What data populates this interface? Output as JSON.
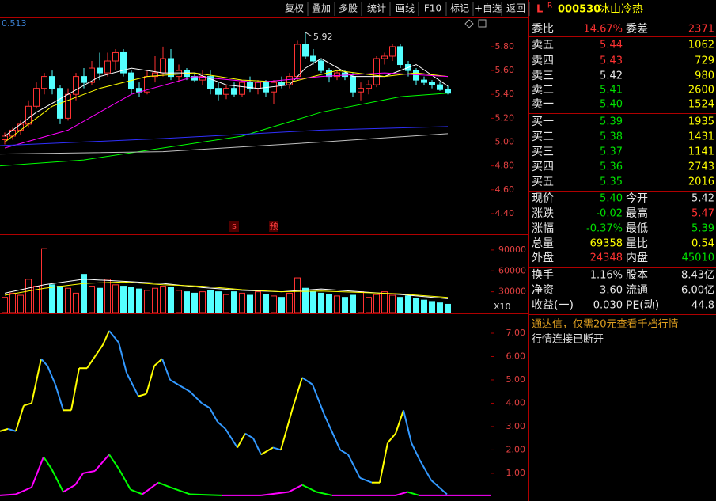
{
  "toolbar": {
    "buttons": [
      "复权",
      "叠加",
      "多股",
      "统计",
      "画线",
      "F10",
      "标记",
      "+自选",
      "返回"
    ]
  },
  "header": {
    "market": "L",
    "flag": "R",
    "code": "000530",
    "name": "冰山冷热"
  },
  "chart_data": [
    {
      "type": "candlestick",
      "corner_label": "0.513",
      "up_color": "#ff3232",
      "down_color": "#54ffff",
      "xlim": [
        -0.6,
        61.4
      ],
      "ylim": [
        4.227,
        6.045
      ],
      "yticks": [
        {
          "value": 4.4,
          "label": "4.40"
        },
        {
          "value": 4.6,
          "label": "4.60"
        },
        {
          "value": 4.8,
          "label": "4.80"
        },
        {
          "value": 5.0,
          "label": "5.00"
        },
        {
          "value": 5.2,
          "label": "5.20"
        },
        {
          "value": 5.4,
          "label": "5.40"
        },
        {
          "value": 5.6,
          "label": "5.60"
        },
        {
          "value": 5.8,
          "label": "5.80"
        }
      ],
      "annotation": {
        "label": "5.92",
        "value": 5.92,
        "index": 38
      },
      "markers": [
        {
          "label": "s",
          "index": 29
        },
        {
          "label": "预",
          "index": 34
        }
      ],
      "candles": [
        [
          5.02,
          5.08,
          4.98,
          5.05
        ],
        [
          5.05,
          5.12,
          5.02,
          5.1
        ],
        [
          5.1,
          5.18,
          5.06,
          5.15
        ],
        [
          5.15,
          5.35,
          5.12,
          5.3
        ],
        [
          5.3,
          5.5,
          5.28,
          5.45
        ],
        [
          5.45,
          5.58,
          5.4,
          5.55
        ],
        [
          5.55,
          5.6,
          5.4,
          5.45
        ],
        [
          5.45,
          5.48,
          5.15,
          5.2
        ],
        [
          5.2,
          5.45,
          5.18,
          5.4
        ],
        [
          5.4,
          5.58,
          5.35,
          5.55
        ],
        [
          5.55,
          5.62,
          5.45,
          5.5
        ],
        [
          5.5,
          5.68,
          5.48,
          5.62
        ],
        [
          5.62,
          5.75,
          5.52,
          5.58
        ],
        [
          5.58,
          5.75,
          5.55,
          5.68
        ],
        [
          5.68,
          5.78,
          5.6,
          5.75
        ],
        [
          5.75,
          5.78,
          5.55,
          5.58
        ],
        [
          5.58,
          5.6,
          5.4,
          5.45
        ],
        [
          5.45,
          5.5,
          5.38,
          5.42
        ],
        [
          5.42,
          5.6,
          5.4,
          5.55
        ],
        [
          5.55,
          5.72,
          5.5,
          5.58
        ],
        [
          5.58,
          5.8,
          5.55,
          5.7
        ],
        [
          5.7,
          5.78,
          5.52,
          5.55
        ],
        [
          5.55,
          5.65,
          5.5,
          5.6
        ],
        [
          5.6,
          5.62,
          5.52,
          5.55
        ],
        [
          5.55,
          5.58,
          5.5,
          5.52
        ],
        [
          5.52,
          5.6,
          5.48,
          5.55
        ],
        [
          5.55,
          5.6,
          5.4,
          5.45
        ],
        [
          5.45,
          5.5,
          5.35,
          5.4
        ],
        [
          5.4,
          5.48,
          5.36,
          5.45
        ],
        [
          5.45,
          5.5,
          5.38,
          5.4
        ],
        [
          5.4,
          5.52,
          5.38,
          5.5
        ],
        [
          5.5,
          5.55,
          5.42,
          5.45
        ],
        [
          5.45,
          5.52,
          5.4,
          5.5
        ],
        [
          5.5,
          5.52,
          5.38,
          5.42
        ],
        [
          5.42,
          5.52,
          5.32,
          5.5
        ],
        [
          5.5,
          5.55,
          5.45,
          5.48
        ],
        [
          5.48,
          5.58,
          5.45,
          5.55
        ],
        [
          5.55,
          5.85,
          5.52,
          5.82
        ],
        [
          5.82,
          5.92,
          5.7,
          5.72
        ],
        [
          5.72,
          5.78,
          5.65,
          5.68
        ],
        [
          5.68,
          5.7,
          5.58,
          5.6
        ],
        [
          5.6,
          5.62,
          5.5,
          5.55
        ],
        [
          5.55,
          5.6,
          5.52,
          5.58
        ],
        [
          5.58,
          5.6,
          5.52,
          5.55
        ],
        [
          5.55,
          5.58,
          5.38,
          5.42
        ],
        [
          5.42,
          5.5,
          5.35,
          5.45
        ],
        [
          5.45,
          5.52,
          5.4,
          5.48
        ],
        [
          5.48,
          5.72,
          5.46,
          5.7
        ],
        [
          5.7,
          5.75,
          5.65,
          5.72
        ],
        [
          5.72,
          5.82,
          5.68,
          5.8
        ],
        [
          5.8,
          5.82,
          5.62,
          5.65
        ],
        [
          5.65,
          5.68,
          5.55,
          5.6
        ],
        [
          5.6,
          5.62,
          5.48,
          5.52
        ],
        [
          5.52,
          5.55,
          5.48,
          5.5
        ],
        [
          5.5,
          5.52,
          5.45,
          5.48
        ],
        [
          5.48,
          5.5,
          5.43,
          5.44
        ],
        [
          5.44,
          5.47,
          5.4,
          5.41
        ]
      ],
      "series": [
        {
          "color": "#ffffff",
          "x": [
            0,
            4,
            8,
            12,
            16,
            20,
            24,
            28,
            32,
            36,
            38,
            40,
            44,
            48,
            52,
            56
          ],
          "values": [
            5.05,
            5.25,
            5.4,
            5.55,
            5.62,
            5.58,
            5.58,
            5.48,
            5.45,
            5.48,
            5.62,
            5.7,
            5.55,
            5.55,
            5.65,
            5.47
          ]
        },
        {
          "color": "#ffff00",
          "x": [
            0,
            6,
            12,
            18,
            24,
            30,
            36,
            42,
            48,
            52,
            56
          ],
          "values": [
            5.0,
            5.3,
            5.45,
            5.55,
            5.58,
            5.52,
            5.5,
            5.6,
            5.55,
            5.58,
            5.55
          ]
        },
        {
          "color": "#ff00ff",
          "x": [
            0,
            8,
            16,
            24,
            32,
            40,
            48,
            56
          ],
          "values": [
            4.95,
            5.1,
            5.4,
            5.55,
            5.5,
            5.55,
            5.58,
            5.55
          ]
        },
        {
          "color": "#00ff00",
          "x": [
            -0.6,
            10,
            20,
            30,
            40,
            50,
            56
          ],
          "values": [
            4.8,
            4.85,
            4.95,
            5.05,
            5.25,
            5.38,
            5.41
          ]
        },
        {
          "color": "#3030ff",
          "x": [
            -0.6,
            20,
            40,
            56
          ],
          "values": [
            4.97,
            5.03,
            5.1,
            5.13
          ]
        },
        {
          "color": "#c0c0c0",
          "x": [
            -0.6,
            20,
            40,
            56
          ],
          "values": [
            4.9,
            4.92,
            5.0,
            5.07
          ]
        }
      ]
    },
    {
      "type": "bar",
      "unit_label": "X10",
      "xlim": [
        -0.6,
        61.4
      ],
      "ylim": [
        0,
        111500
      ],
      "yticks": [
        30000,
        60000,
        90000
      ],
      "values": [
        22000,
        28000,
        25000,
        48000,
        38000,
        92000,
        40000,
        38000,
        35000,
        28000,
        55000,
        38000,
        35000,
        48000,
        40000,
        38000,
        36000,
        34000,
        32000,
        35000,
        38000,
        36000,
        32000,
        30000,
        28000,
        30000,
        32000,
        30000,
        26000,
        30000,
        28000,
        25000,
        30000,
        26000,
        24000,
        22000,
        28000,
        50000,
        35000,
        30000,
        28000,
        26000,
        24000,
        22000,
        25000,
        30000,
        22000,
        26000,
        30000,
        25000,
        22000,
        24000,
        20000,
        18000,
        16000,
        14000,
        12000
      ],
      "series": [
        {
          "color": "#ffffff",
          "x": [
            0,
            5,
            10,
            15,
            20,
            25,
            30,
            35,
            40,
            45,
            50,
            56
          ],
          "values": [
            28000,
            40000,
            48000,
            45000,
            42000,
            36000,
            32000,
            30000,
            34000,
            30000,
            26000,
            20000
          ]
        },
        {
          "color": "#ffff00",
          "x": [
            0,
            5,
            10,
            15,
            20,
            25,
            30,
            35,
            40,
            45,
            50,
            56
          ],
          "values": [
            25000,
            35000,
            42000,
            44000,
            40000,
            38000,
            33000,
            30000,
            31000,
            29000,
            27000,
            22000
          ]
        }
      ]
    },
    {
      "type": "line",
      "xlim": [
        -0.6,
        61.4
      ],
      "ylim": [
        -0.19,
        7.78
      ],
      "yticks": [
        {
          "value": 1,
          "label": "1.00"
        },
        {
          "value": 2,
          "label": "2.00"
        },
        {
          "value": 3,
          "label": "3.00"
        },
        {
          "value": 4,
          "label": "4.00"
        },
        {
          "value": 5,
          "label": "5.00"
        },
        {
          "value": 6,
          "label": "6.00"
        },
        {
          "value": 7,
          "label": "7.00"
        }
      ],
      "series": [
        {
          "up_color": "#ffff00",
          "down_color": "#3399ff",
          "x": [
            -0.6,
            0.4,
            1.4,
            2.4,
            3.4,
            4.6,
            5.4,
            6.4,
            7.4,
            8.4,
            9.4,
            10.4,
            11.4,
            12.4,
            13.2,
            14.4,
            15.4,
            16.9,
            17.9,
            18.9,
            19.9,
            20.9,
            21.9,
            23.4,
            24.9,
            25.9,
            26.9,
            27.9,
            29.4,
            30.4,
            31.4,
            32.4,
            33.9,
            34.9,
            36.4,
            37.6,
            38.9,
            40.4,
            42.4,
            43.4,
            44.9,
            46.4,
            47.4,
            48.4,
            49.4,
            50.4,
            51.4,
            52.4,
            53.9,
            54.9,
            55.9
          ],
          "values": [
            2.8,
            2.9,
            2.8,
            3.9,
            4.0,
            5.9,
            5.6,
            4.8,
            3.7,
            3.7,
            5.5,
            5.5,
            6.0,
            6.5,
            7.1,
            6.6,
            5.3,
            4.3,
            4.4,
            5.6,
            5.9,
            5.0,
            4.8,
            4.5,
            4.0,
            3.8,
            3.2,
            2.9,
            2.1,
            2.7,
            2.5,
            1.8,
            2.1,
            2.0,
            3.8,
            5.1,
            4.8,
            3.5,
            2.0,
            1.8,
            0.8,
            0.6,
            0.6,
            2.3,
            2.7,
            3.7,
            2.3,
            1.6,
            0.7,
            0.4,
            0.1
          ]
        },
        {
          "up_color": "#ff00ff",
          "down_color": "#00ff00",
          "x": [
            -0.6,
            1.4,
            3.4,
            4.9,
            5.9,
            7.4,
            8.9,
            9.9,
            11.4,
            13.2,
            14.4,
            15.9,
            17.4,
            19.4,
            20.9,
            23.4,
            27.4,
            32.4,
            35.9,
            37.6,
            39.4,
            41.4,
            49.4,
            50.9,
            52.4,
            61.4
          ],
          "values": [
            0.05,
            0.1,
            0.4,
            1.7,
            1.2,
            0.2,
            0.5,
            1.0,
            1.1,
            1.8,
            1.2,
            0.3,
            0.1,
            0.6,
            0.4,
            0.1,
            0.05,
            0.05,
            0.2,
            0.5,
            0.2,
            0.05,
            0.05,
            0.2,
            0.05,
            0.05
          ]
        }
      ]
    }
  ],
  "quote_panel": {
    "rows": [
      [
        "委比",
        "14.67%",
        "委差",
        "2371"
      ],
      [
        "卖五",
        "5.44",
        "1062"
      ],
      [
        "卖四",
        "5.43",
        "729"
      ],
      [
        "卖三",
        "5.42",
        "980"
      ],
      [
        "卖二",
        "5.41",
        "2600"
      ],
      [
        "卖一",
        "5.40",
        "1524"
      ],
      [
        "买一",
        "5.39",
        "1935"
      ],
      [
        "买二",
        "5.38",
        "1431"
      ],
      [
        "买三",
        "5.37",
        "1141"
      ],
      [
        "买四",
        "5.36",
        "2743"
      ],
      [
        "买五",
        "5.35",
        "2016"
      ],
      [
        "现价",
        "5.40",
        "今开",
        "5.42"
      ],
      [
        "涨跌",
        "-0.02",
        "最高",
        "5.47"
      ],
      [
        "涨幅",
        "-0.37%",
        "最低",
        "5.39"
      ],
      [
        "总量",
        "69358",
        "量比",
        "0.54"
      ],
      [
        "外盘",
        "24348",
        "内盘",
        "45010"
      ],
      [
        "换手",
        "1.16%",
        "股本",
        "8.43亿"
      ],
      [
        "净资",
        "3.60",
        "流通",
        "6.00亿"
      ],
      [
        "收益(一)",
        "0.030",
        "PE(动)",
        "44.8"
      ]
    ],
    "notice": "通达信，仅需20元查看千档行情",
    "status": "行情连接已断开"
  }
}
